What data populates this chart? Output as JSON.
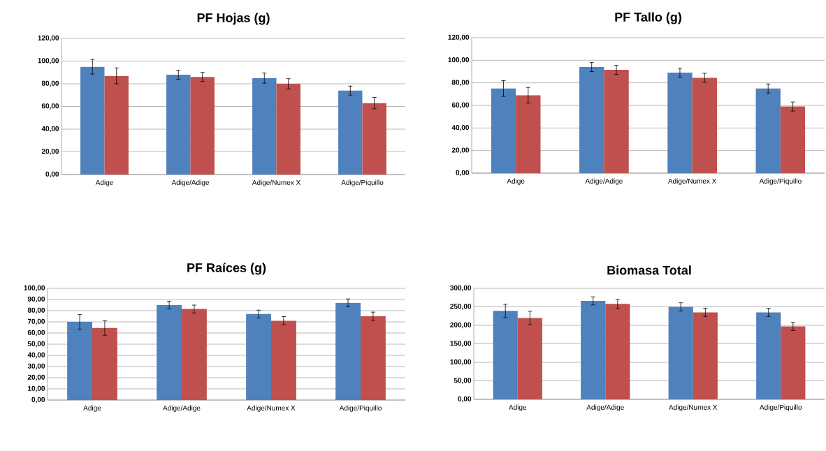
{
  "chart_data": [
    {
      "type": "bar",
      "title": "PF Hojas (g)",
      "categories": [
        "Adige",
        "Adige/Adige",
        "Adige/Numex X",
        "Adige/Piquillo"
      ],
      "ylim": [
        0,
        120
      ],
      "yticks": [
        {
          "value": 0,
          "label": "0,00"
        },
        {
          "value": 20,
          "label": "20,00"
        },
        {
          "value": 40,
          "label": "40,00"
        },
        {
          "value": 60,
          "label": "60,00"
        },
        {
          "value": 80,
          "label": "80,00"
        },
        {
          "value": 100,
          "label": "100,00"
        },
        {
          "value": 120,
          "label": "120,00"
        }
      ],
      "grid": "y",
      "series": [
        {
          "color": "#4f81bd",
          "values": [
            95,
            88,
            85,
            74
          ],
          "errors": [
            6.5,
            4,
            4.5,
            4
          ]
        },
        {
          "color": "#c0504d",
          "values": [
            87,
            86,
            80,
            63
          ],
          "errors": [
            7,
            4,
            4.5,
            5
          ]
        }
      ]
    },
    {
      "type": "bar",
      "title": "PF Tallo (g)",
      "categories": [
        "Adige",
        "Adige/Adige",
        "Adige/Numex X",
        "Adige/Piquillo"
      ],
      "ylim": [
        0,
        120
      ],
      "yticks": [
        {
          "value": 0,
          "label": "0,00"
        },
        {
          "value": 20,
          "label": "20,00"
        },
        {
          "value": 40,
          "label": "40,00"
        },
        {
          "value": 60,
          "label": "60,00"
        },
        {
          "value": 80,
          "label": "80,00"
        },
        {
          "value": 100,
          "label": "100,00"
        },
        {
          "value": 120,
          "label": "120,00"
        }
      ],
      "grid": "y",
      "series": [
        {
          "color": "#4f81bd",
          "values": [
            75,
            94,
            89,
            75
          ],
          "errors": [
            7,
            4,
            4,
            4
          ]
        },
        {
          "color": "#c0504d",
          "values": [
            69,
            91.5,
            84.5,
            59
          ],
          "errors": [
            7,
            4,
            4,
            4
          ]
        }
      ]
    },
    {
      "type": "bar",
      "title": "PF Raíces (g)",
      "categories": [
        "Adige",
        "Adige/Adige",
        "Adige/Numex X",
        "Adige/Piquillo"
      ],
      "ylim": [
        0,
        100
      ],
      "yticks": [
        {
          "value": 0,
          "label": "0,00"
        },
        {
          "value": 10,
          "label": "10,00"
        },
        {
          "value": 20,
          "label": "20,00"
        },
        {
          "value": 30,
          "label": "30,00"
        },
        {
          "value": 40,
          "label": "40,00"
        },
        {
          "value": 50,
          "label": "50,00"
        },
        {
          "value": 60,
          "label": "60,00"
        },
        {
          "value": 70,
          "label": "70,00"
        },
        {
          "value": 80,
          "label": "80,00"
        },
        {
          "value": 90,
          "label": "90,00"
        },
        {
          "value": 100,
          "label": "100,00"
        }
      ],
      "grid": "y",
      "series": [
        {
          "color": "#4f81bd",
          "values": [
            70,
            85,
            77,
            87
          ],
          "errors": [
            6.5,
            3.5,
            3.5,
            3.5
          ]
        },
        {
          "color": "#c0504d",
          "values": [
            64.5,
            81.5,
            71,
            75
          ],
          "errors": [
            6.5,
            3.5,
            3.7,
            3.7
          ]
        }
      ]
    },
    {
      "type": "bar",
      "title": "Biomasa Total",
      "categories": [
        "Adige",
        "Adige/Adige",
        "Adige/Numex X",
        "Adige/Piquillo"
      ],
      "ylim": [
        0,
        300
      ],
      "yticks": [
        {
          "value": 0,
          "label": "0,00"
        },
        {
          "value": 50,
          "label": "50,00"
        },
        {
          "value": 100,
          "label": "100,00"
        },
        {
          "value": 150,
          "label": "150,00"
        },
        {
          "value": 200,
          "label": "200,00"
        },
        {
          "value": 250,
          "label": "250,00"
        },
        {
          "value": 300,
          "label": "300,00"
        }
      ],
      "grid": "y",
      "series": [
        {
          "color": "#4f81bd",
          "values": [
            239,
            266,
            250,
            235
          ],
          "errors": [
            18,
            11,
            11,
            11
          ]
        },
        {
          "color": "#c0504d",
          "values": [
            220,
            258,
            235,
            197
          ],
          "errors": [
            18,
            12,
            11,
            11
          ]
        }
      ]
    }
  ]
}
